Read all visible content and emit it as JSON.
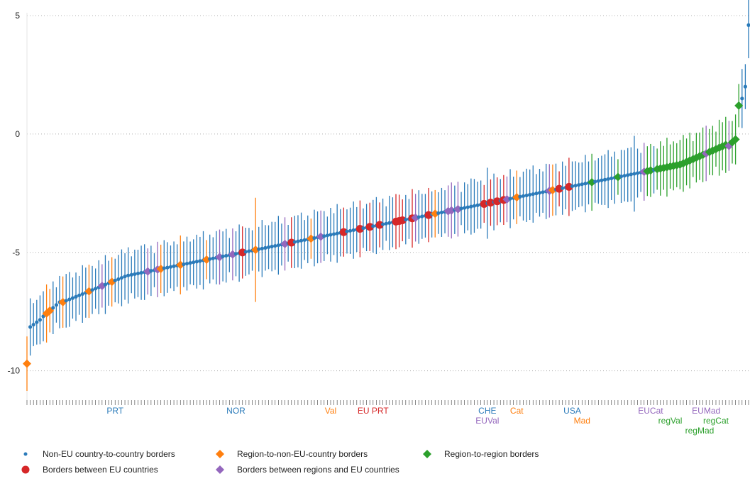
{
  "chart_data": {
    "type": "scatter",
    "ylim": [
      -11,
      5
    ],
    "yticks": [
      -10,
      -5,
      0,
      5
    ],
    "xlabel": "",
    "ylabel": "",
    "grid": "horizontal dotted",
    "legend_position": "bottom",
    "series": [
      {
        "name": "Non-EU country-to-country borders",
        "color": "#2b7bba",
        "marker": "small-dot",
        "indices": [
          1,
          2,
          3,
          4,
          5,
          6,
          7,
          8,
          9,
          10,
          11,
          12,
          13,
          14,
          15,
          16,
          17,
          18,
          19,
          20,
          21,
          22,
          23,
          24,
          25,
          26,
          27,
          28,
          29,
          30,
          31,
          32,
          33,
          34,
          35,
          36,
          37,
          38,
          39,
          40,
          41,
          42,
          43,
          44,
          45,
          46,
          47,
          48,
          49,
          50,
          51,
          52,
          53,
          54,
          55,
          56,
          57,
          58,
          59,
          60,
          61,
          62,
          63,
          64,
          65,
          66,
          67,
          68,
          69,
          70,
          71,
          72,
          73,
          74,
          75,
          76,
          77,
          78,
          79,
          80,
          81,
          82,
          83,
          84,
          85,
          86,
          87,
          88,
          89,
          90,
          91,
          92,
          93,
          94,
          95,
          96,
          97,
          98,
          99,
          100,
          101,
          102,
          103,
          104,
          105,
          106,
          107,
          108,
          109,
          110,
          111,
          112,
          113,
          114,
          115,
          116,
          117,
          118,
          119,
          120,
          121,
          122,
          123,
          124,
          125,
          126,
          127,
          128,
          129,
          130,
          131,
          132,
          133,
          134,
          135,
          136,
          137,
          138,
          139,
          140,
          141,
          142,
          143,
          144,
          145,
          146,
          147,
          148,
          149,
          150,
          151,
          152,
          153,
          154,
          155,
          156,
          157,
          158,
          159,
          160,
          161,
          162,
          163,
          164,
          165,
          166,
          167,
          168,
          169,
          170,
          171,
          172,
          173,
          174,
          175,
          176,
          177,
          178,
          179,
          180,
          181,
          182,
          183,
          184,
          185,
          186,
          187,
          188,
          189,
          190,
          191,
          192,
          193,
          194,
          195,
          196,
          197,
          198,
          199,
          200,
          201,
          202,
          203,
          204,
          205,
          206,
          207,
          208,
          209,
          210,
          211,
          212,
          213,
          214,
          215,
          216,
          217,
          218,
          219,
          220,
          221
        ]
      },
      {
        "name": "Borders between EU countries",
        "color": "#d62728",
        "marker": "large-dot",
        "indices": [
          66,
          81,
          97,
          102,
          105,
          108,
          113,
          114,
          115,
          118,
          123,
          140,
          142,
          144,
          146,
          163,
          166
        ]
      },
      {
        "name": "Region-to-non-EU-country borders",
        "color": "#ff7f0e",
        "marker": "diamond",
        "indices": [
          0,
          6,
          7,
          11,
          19,
          26,
          41,
          47,
          55,
          70,
          87,
          125,
          150,
          161
        ]
      },
      {
        "name": "Borders between regions and EU countries",
        "color": "#9467bd",
        "marker": "diamond",
        "indices": [
          23,
          37,
          40,
          59,
          63,
          79,
          90,
          119,
          129,
          130,
          132,
          147,
          160,
          189,
          208,
          215
        ]
      },
      {
        "name": "Region-to-region borders",
        "color": "#2ca02c",
        "marker": "diamond",
        "indices": [
          173,
          181,
          190,
          191,
          193,
          194,
          195,
          196,
          197,
          198,
          199,
          200,
          201,
          202,
          203,
          204,
          205,
          206,
          207,
          209,
          210,
          211,
          212,
          213,
          214,
          216,
          217,
          218
        ]
      }
    ],
    "label_rows": [
      [
        {
          "text": "PRT",
          "index": 27,
          "color": "#2b7bba"
        },
        {
          "text": "NOR",
          "index": 64,
          "color": "#2b7bba"
        },
        {
          "text": "Val",
          "index": 93,
          "color": "#ff7f0e"
        },
        {
          "text": "EU PRT",
          "index": 106,
          "color": "#d62728"
        },
        {
          "text": "CHE",
          "index": 141,
          "color": "#2b7bba"
        },
        {
          "text": "Cat",
          "index": 150,
          "color": "#ff7f0e"
        },
        {
          "text": "USA",
          "index": 167,
          "color": "#2b7bba"
        },
        {
          "text": "EUCat",
          "index": 191,
          "color": "#9467bd"
        },
        {
          "text": "EUMad",
          "index": 208,
          "color": "#9467bd"
        }
      ],
      [
        {
          "text": "EUVal",
          "index": 141,
          "color": "#9467bd"
        },
        {
          "text": "Mad",
          "index": 170,
          "color": "#ff7f0e"
        },
        {
          "text": "regVal",
          "index": 197,
          "color": "#2ca02c"
        },
        {
          "text": "regCat",
          "index": 211,
          "color": "#2ca02c"
        }
      ],
      [
        {
          "text": "regMad",
          "index": 206,
          "color": "#2ca02c"
        }
      ]
    ]
  },
  "legend": [
    {
      "label": "Non-EU country-to-country borders",
      "color": "#2b7bba",
      "marker": "small-dot"
    },
    {
      "label": "Region-to-non-EU-country borders",
      "color": "#ff7f0e",
      "marker": "diamond"
    },
    {
      "label": "Region-to-region borders",
      "color": "#2ca02c",
      "marker": "diamond"
    },
    {
      "label": "Borders between EU countries",
      "color": "#d62728",
      "marker": "large-dot"
    },
    {
      "label": "Borders between regions and EU countries",
      "color": "#9467bd",
      "marker": "diamond"
    }
  ]
}
